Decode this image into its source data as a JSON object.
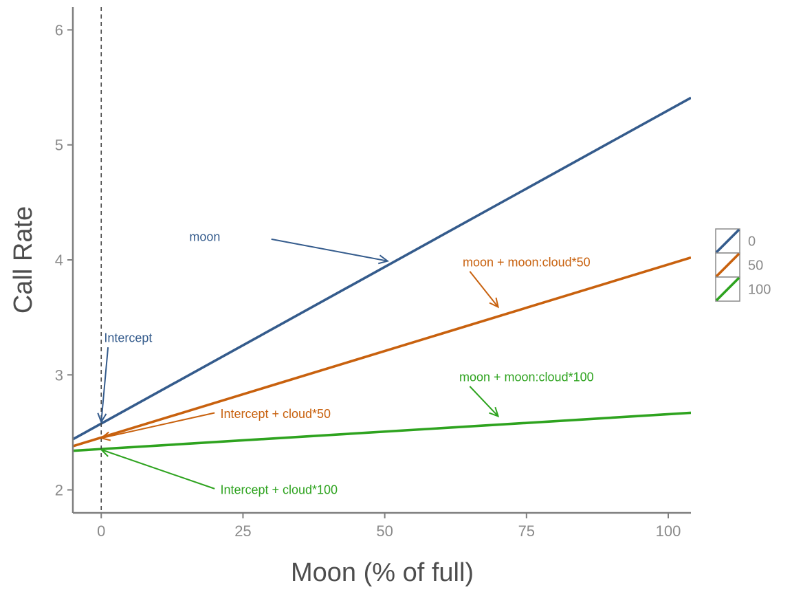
{
  "chart_data": {
    "type": "line",
    "xlabel": "Moon (% of full)",
    "ylabel": "Call Rate",
    "xlim": [
      -5,
      104
    ],
    "ylim": [
      1.8,
      6.2
    ],
    "x_ticks": [
      0,
      25,
      50,
      75,
      100
    ],
    "x_tick_labels": [
      "0",
      "25",
      "50",
      "75",
      "100"
    ],
    "y_ticks": [
      2,
      3,
      4,
      5,
      6
    ],
    "y_tick_labels": [
      "2",
      "3",
      "4",
      "5",
      "6"
    ],
    "grid": false,
    "legend_position": "right",
    "reference_line": {
      "x": 0,
      "style": "dashed"
    },
    "series": [
      {
        "name": "0",
        "color": "#345b8c",
        "intercept": 2.58,
        "slope": 0.0272,
        "x": [
          -5,
          104
        ],
        "y": [
          2.44,
          5.41
        ]
      },
      {
        "name": "50",
        "color": "#c8610e",
        "intercept": 2.45,
        "slope": 0.01513,
        "x": [
          -5,
          104
        ],
        "y": [
          2.38,
          4.02
        ]
      },
      {
        "name": "100",
        "color": "#2ea31f",
        "intercept": 2.35,
        "slope": 0.00306,
        "x": [
          -5,
          104
        ],
        "y": [
          2.34,
          2.67
        ]
      }
    ],
    "annotations": [
      {
        "text": "moon",
        "color": "#345b8c",
        "text_at": [
          21,
          4.2
        ],
        "arrow_from": [
          30,
          4.18
        ],
        "arrow_to": [
          50.5,
          3.99
        ],
        "anchor": "end"
      },
      {
        "text": "moon + moon:cloud*50",
        "color": "#c8610e",
        "text_at": [
          75,
          3.98
        ],
        "arrow_from": [
          65,
          3.9
        ],
        "arrow_to": [
          70,
          3.59
        ],
        "anchor": "middle"
      },
      {
        "text": "Intercept",
        "color": "#345b8c",
        "text_at": [
          0.5,
          3.32
        ],
        "arrow_from": [
          1.2,
          3.24
        ],
        "arrow_to": [
          0,
          2.59
        ],
        "anchor": "start"
      },
      {
        "text": "moon + moon:cloud*100",
        "color": "#2ea31f",
        "text_at": [
          75,
          2.98
        ],
        "arrow_from": [
          65,
          2.9
        ],
        "arrow_to": [
          70,
          2.64
        ],
        "anchor": "middle"
      },
      {
        "text": "Intercept + cloud*50",
        "color": "#c8610e",
        "text_at": [
          21,
          2.66
        ],
        "arrow_from": [
          20,
          2.67
        ],
        "arrow_to": [
          0,
          2.45
        ],
        "anchor": "start"
      },
      {
        "text": "Intercept + cloud*100",
        "color": "#2ea31f",
        "text_at": [
          21,
          2.0
        ],
        "arrow_from": [
          20,
          2.01
        ],
        "arrow_to": [
          0,
          2.35
        ],
        "anchor": "start"
      }
    ]
  }
}
